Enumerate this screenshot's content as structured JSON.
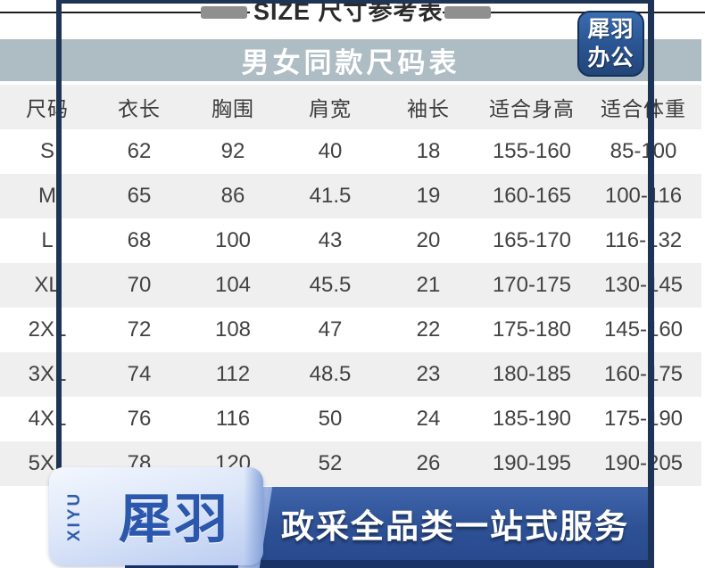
{
  "page": {
    "top_title": "SIZE 尺寸参考表",
    "brand_badge": {
      "line1": "犀羽",
      "line2": "办公"
    },
    "header_bar_title": "男女同款尺码表",
    "footer_banner": {
      "logo_vertical": "XIYU",
      "logo_cn": "犀羽",
      "slogan": "政采全品类一站式服务"
    },
    "colors": {
      "frame_navy": "#1e3456",
      "header_bar_gray_blue": "#aebdc3",
      "row_alt_gray": "#efefef",
      "badge_blue": "#2a5390",
      "banner_blue": "#2e5196",
      "ribbon_light_blue": "#d9e4f8",
      "logo_blue": "#2b57ac"
    }
  },
  "chart_data": {
    "type": "table",
    "title": "男女同款尺码表",
    "columns": [
      "尺码",
      "衣长",
      "胸围",
      "肩宽",
      "袖长",
      "适合身高",
      "适合体重"
    ],
    "rows": [
      [
        "S",
        "62",
        "92",
        "40",
        "18",
        "155-160",
        "85-100"
      ],
      [
        "M",
        "65",
        "86",
        "41.5",
        "19",
        "160-165",
        "100-116"
      ],
      [
        "L",
        "68",
        "100",
        "43",
        "20",
        "165-170",
        "116-132"
      ],
      [
        "XL",
        "70",
        "104",
        "45.5",
        "21",
        "170-175",
        "130-145"
      ],
      [
        "2XL",
        "72",
        "108",
        "47",
        "22",
        "175-180",
        "145-160"
      ],
      [
        "3XL",
        "74",
        "112",
        "48.5",
        "23",
        "180-185",
        "160-175"
      ],
      [
        "4XL",
        "76",
        "116",
        "50",
        "24",
        "185-190",
        "175-190"
      ],
      [
        "5XL",
        "78",
        "120",
        "52",
        "26",
        "190-195",
        "190-205"
      ]
    ]
  }
}
